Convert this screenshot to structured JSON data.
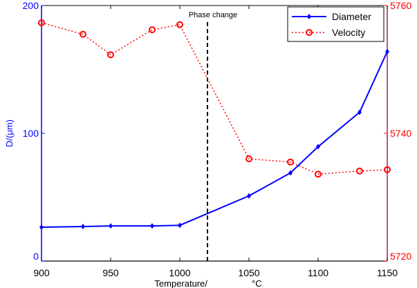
{
  "chart_data": {
    "type": "line",
    "xlabel": "Temperature/",
    "xlabel_unit": "°C",
    "ylabel_left": "D/(μm)",
    "annotation": "Phase change",
    "annotation_x": 1020,
    "xlim": [
      900,
      1150
    ],
    "ylim_left": [
      0,
      200
    ],
    "ylim_right": [
      5720,
      5760
    ],
    "xticks": [
      "900",
      "950",
      "1000",
      "1050",
      "1100",
      "1150"
    ],
    "yticks_left": [
      "0",
      "100",
      "200"
    ],
    "yticks_right": [
      "5720",
      "5740",
      "5760"
    ],
    "legend_placement": "top-right",
    "grid": false,
    "x": [
      900,
      930,
      950,
      980,
      1000,
      1050,
      1080,
      1100,
      1130,
      1150
    ],
    "series": [
      {
        "name": "Diameter",
        "axis": "left",
        "color": "#0000ff",
        "style": "solid",
        "marker": "diamond",
        "values": [
          26.5,
          27,
          27.5,
          27.5,
          28,
          51,
          69,
          89.5,
          116.5,
          164
        ]
      },
      {
        "name": "Velocity",
        "axis": "right",
        "color": "#ff0000",
        "style": "dotted",
        "marker": "circle",
        "values": [
          5757.3,
          5755.5,
          5752.3,
          5756.2,
          5757.0,
          5736.0,
          5735.5,
          5733.6,
          5734.1,
          5734.3
        ]
      }
    ]
  }
}
